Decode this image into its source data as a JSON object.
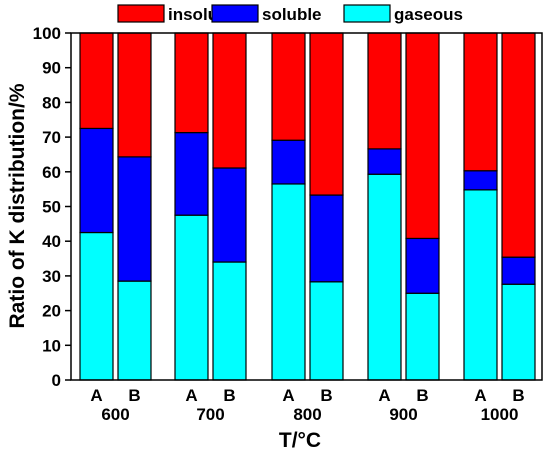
{
  "chart_data": {
    "type": "bar",
    "stacked": true,
    "categories": [
      "600 A",
      "600 B",
      "700 A",
      "700 B",
      "800 A",
      "800 B",
      "900 A",
      "900 B",
      "1000 A",
      "1000 B"
    ],
    "bar_labels": [
      "A",
      "B",
      "A",
      "B",
      "A",
      "B",
      "A",
      "B",
      "A",
      "B"
    ],
    "groups": [
      "600",
      "700",
      "800",
      "900",
      "1000"
    ],
    "series": [
      {
        "name": "gaseous",
        "color": "#00FFFF",
        "values": [
          42.5,
          28.5,
          47.5,
          34,
          56.5,
          28.3,
          59.3,
          25,
          54.8,
          27.6
        ]
      },
      {
        "name": "soluble",
        "color": "#0000FF",
        "values": [
          30,
          35.8,
          23.8,
          27.1,
          12.6,
          25,
          7.3,
          15.8,
          5.5,
          7.8
        ]
      },
      {
        "name": "insoluble",
        "color": "#FF0000",
        "values": [
          27.5,
          35.7,
          28.7,
          38.9,
          30.9,
          46.7,
          33.4,
          59.2,
          39.7,
          64.6
        ]
      }
    ],
    "legend_order": [
      "insoluble",
      "soluble",
      "gaseous"
    ],
    "legend_position": "top",
    "xlabel": "T/°C",
    "ylabel": "Ratio of K distribution/%",
    "ylim": [
      0,
      100
    ],
    "yticks": [
      0,
      10,
      20,
      30,
      40,
      50,
      60,
      70,
      80,
      90,
      100
    ],
    "grid": false
  }
}
